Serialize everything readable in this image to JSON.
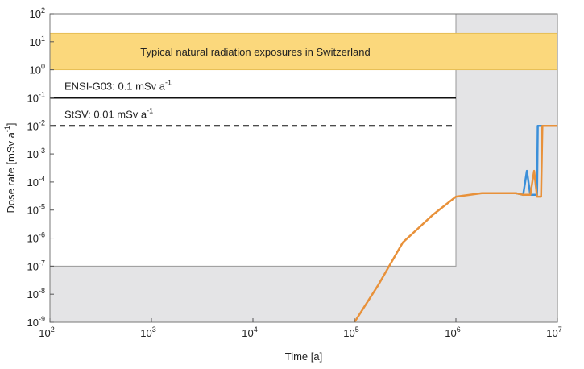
{
  "chart_data": {
    "type": "line",
    "x_label": "Time [a]",
    "y_label": {
      "text": "Dose rate [mSv a",
      "sup": "-1",
      "tail": "]"
    },
    "xlog": true,
    "ylog": true,
    "xlim": [
      100,
      10000000
    ],
    "ylim": [
      1e-09,
      100
    ],
    "xticks": [
      {
        "value": 100,
        "label": "10",
        "exponent": "2"
      },
      {
        "value": 1000,
        "label": "10",
        "exponent": "3"
      },
      {
        "value": 10000,
        "label": "10",
        "exponent": "4"
      },
      {
        "value": 100000,
        "label": "10",
        "exponent": "5"
      },
      {
        "value": 1000000,
        "label": "10",
        "exponent": "6"
      },
      {
        "value": 10000000,
        "label": "10",
        "exponent": "7"
      }
    ],
    "yticks": [
      {
        "value": 1e-09,
        "label": "10",
        "exponent": "-9"
      },
      {
        "value": 1e-08,
        "label": "10",
        "exponent": "-8"
      },
      {
        "value": 1e-07,
        "label": "10",
        "exponent": "-7"
      },
      {
        "value": 1e-06,
        "label": "10",
        "exponent": "-6"
      },
      {
        "value": 1e-05,
        "label": "10",
        "exponent": "-5"
      },
      {
        "value": 0.0001,
        "label": "10",
        "exponent": "-4"
      },
      {
        "value": 0.001,
        "label": "10",
        "exponent": "-3"
      },
      {
        "value": 0.01,
        "label": "10",
        "exponent": "-2"
      },
      {
        "value": 0.1,
        "label": "10",
        "exponent": "-1"
      },
      {
        "value": 1,
        "label": "10",
        "exponent": "0"
      },
      {
        "value": 10,
        "label": "10",
        "exponent": "1"
      },
      {
        "value": 100,
        "label": "10",
        "exponent": "2"
      }
    ],
    "shade": {
      "x_from": 1000000,
      "y_below": 1e-07,
      "color": "#e4e4e6"
    },
    "band": {
      "y": [
        1,
        20
      ],
      "color": "#fbd87c",
      "label": "Typical natural radiation exposures in Switzerland"
    },
    "ref_lines": [
      {
        "value": 0.1,
        "x_to": 1000000,
        "dashed": false,
        "label": {
          "text": "ENSI-G03: 0.1 mSv a",
          "sup": "-1"
        }
      },
      {
        "value": 0.01,
        "x_to": 1000000,
        "dashed": true,
        "label": {
          "text": "StSV: 0.01 mSv a",
          "sup": "-1"
        }
      }
    ],
    "series": [
      {
        "color": "#3b8fd9",
        "x": [
          3900000,
          4600000,
          5000000,
          5400000,
          6300000,
          6400000,
          10000000
        ],
        "values": [
          4e-05,
          3.5e-05,
          0.00025,
          3.5e-05,
          3.5e-05,
          0.01,
          0.01
        ]
      },
      {
        "color": "#e8913a",
        "x": [
          100000,
          170000,
          300000,
          600000,
          1000000,
          1800000,
          3900000,
          4600000,
          5400000,
          5900000,
          6300000,
          6900000,
          7100000,
          10000000
        ],
        "values": [
          1e-09,
          2e-08,
          7e-07,
          7e-06,
          3e-05,
          4e-05,
          4e-05,
          3.5e-05,
          3.5e-05,
          0.00025,
          3e-05,
          3e-05,
          0.01,
          0.01
        ]
      }
    ]
  }
}
